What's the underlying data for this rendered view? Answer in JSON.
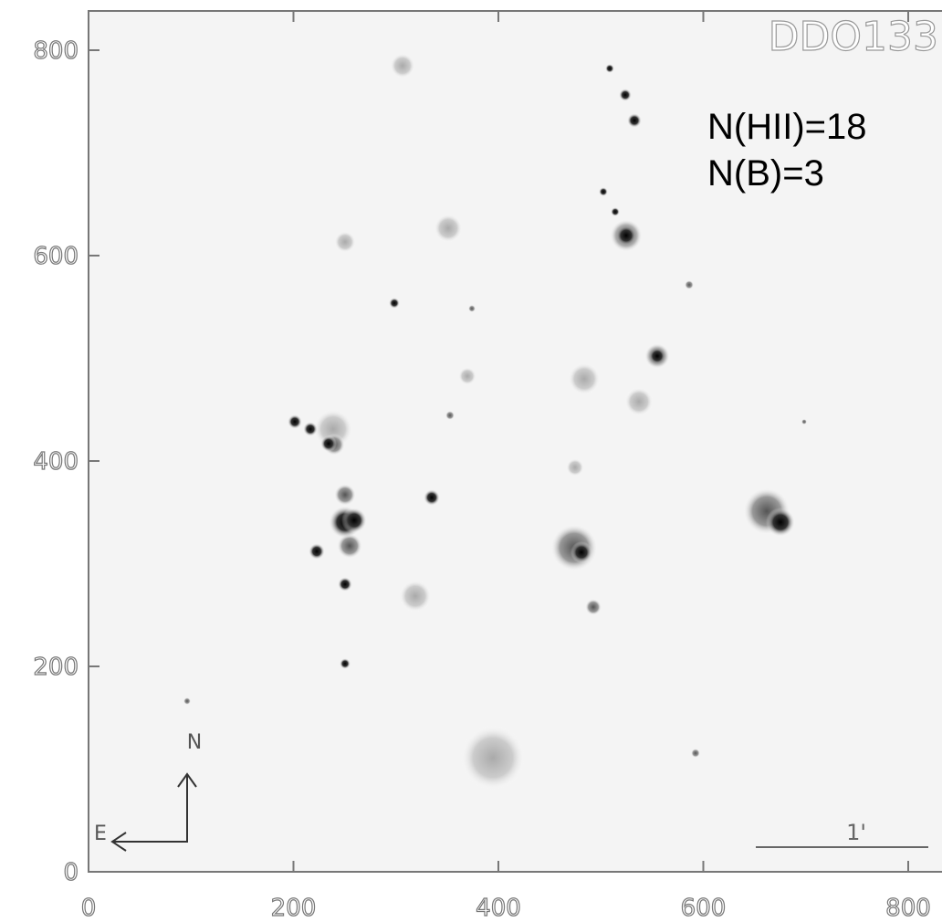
{
  "chart_data": {
    "type": "image",
    "title": "DDO133",
    "annotations": [
      "N(HII)=18",
      "N(B)=3"
    ],
    "compass": {
      "north": "N",
      "east": "E"
    },
    "scale_bar": "1'",
    "xlim": [
      0,
      833
    ],
    "ylim": [
      0,
      838
    ],
    "xticks": [
      0,
      200,
      400,
      600,
      800
    ],
    "yticks": [
      0,
      200,
      400,
      600,
      800
    ]
  }
}
